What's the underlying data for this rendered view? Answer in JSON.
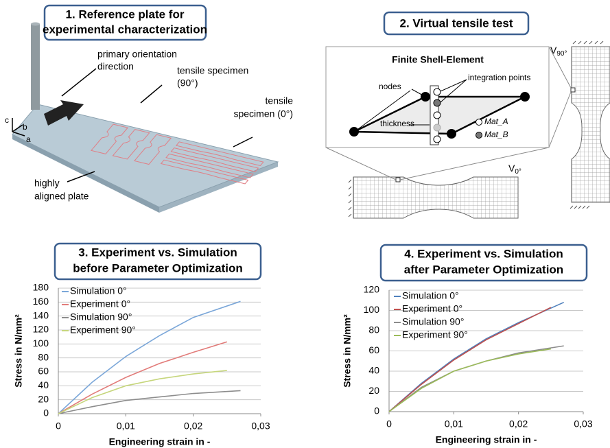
{
  "diagram_1": {
    "title_lines": [
      "1. Reference plate for",
      "experimental characterization"
    ],
    "orientation_lines": [
      "primary orientation",
      "direction"
    ],
    "specimen_90_lines": [
      "tensile specimen",
      "(90°)"
    ],
    "specimen_0_lines": [
      "tensile",
      "specimen (0°)"
    ],
    "plate_lines": [
      "highly",
      "aligned plate"
    ],
    "axes": [
      "c",
      "b",
      "a"
    ]
  },
  "diagram_2": {
    "title": "2. Virtual tensile test",
    "element_title": "Finite Shell-Element",
    "nodes": "nodes",
    "integration_points": "integration points",
    "thickness": "thickness",
    "materials": [
      "Mat_A",
      "Mat_B"
    ],
    "v90": {
      "symbol": "V",
      "subscript": "90°"
    },
    "v0": {
      "symbol": "V",
      "subscript": "0°"
    }
  },
  "chart_data": [
    {
      "type": "line",
      "title_lines": [
        "3. Experiment vs. Simulation",
        "before Parameter Optimization"
      ],
      "xlabel": "Engineering strain in -",
      "ylabel": "Stress in N/mm²",
      "xlim": [
        0,
        0.03
      ],
      "ylim": [
        0,
        180
      ],
      "xticks": [
        0,
        {
          "value": 0.01,
          "label": "0,01"
        },
        {
          "value": 0.02,
          "label": "0,02"
        },
        {
          "value": 0.03,
          "label": "0,03"
        }
      ],
      "yticks": [
        0,
        20,
        40,
        60,
        80,
        100,
        120,
        140,
        160,
        180
      ],
      "grid": true,
      "legend": "upper left",
      "series": [
        {
          "name": "Simulation 0°",
          "color": "#7ba7d9",
          "x": [
            0,
            0.005,
            0.01,
            0.015,
            0.02,
            0.027
          ],
          "values": [
            0,
            45,
            82,
            112,
            138,
            161
          ]
        },
        {
          "name": "Experiment 0°",
          "color": "#e27c7a",
          "x": [
            0,
            0.005,
            0.01,
            0.015,
            0.02,
            0.025
          ],
          "values": [
            0,
            28,
            52,
            72,
            88,
            103
          ]
        },
        {
          "name": "Simulation 90°",
          "color": "#8c8c8c",
          "x": [
            0,
            0.005,
            0.01,
            0.015,
            0.02,
            0.027
          ],
          "values": [
            0,
            10,
            19,
            24,
            29,
            33
          ]
        },
        {
          "name": "Experiment 90°",
          "color": "#c6d67c",
          "x": [
            0,
            0.005,
            0.01,
            0.015,
            0.02,
            0.025
          ],
          "values": [
            0,
            23,
            40,
            50,
            57,
            62
          ]
        }
      ]
    },
    {
      "type": "line",
      "title_lines": [
        "4. Experiment vs. Simulation",
        "after Parameter Optimization"
      ],
      "xlabel": "Engineering strain in -",
      "ylabel": "Stress in N/mm²",
      "xlim": [
        0,
        0.03
      ],
      "ylim": [
        0,
        120
      ],
      "xticks": [
        0,
        {
          "value": 0.01,
          "label": "0,01"
        },
        {
          "value": 0.02,
          "label": "0,02"
        },
        {
          "value": 0.03,
          "label": "0,03"
        }
      ],
      "yticks": [
        0,
        20,
        40,
        60,
        80,
        100,
        120
      ],
      "grid": true,
      "legend": "upper left",
      "series": [
        {
          "name": "Simulation 0°",
          "color": "#4f81bd",
          "x": [
            0,
            0.005,
            0.01,
            0.015,
            0.02,
            0.027
          ],
          "values": [
            0,
            28,
            52,
            72,
            88,
            108
          ]
        },
        {
          "name": "Experiment 0°",
          "color": "#c0504d",
          "x": [
            0,
            0.005,
            0.01,
            0.015,
            0.02,
            0.025
          ],
          "values": [
            0,
            27,
            51,
            71,
            87,
            103
          ]
        },
        {
          "name": "Simulation 90°",
          "color": "#8c8c8c",
          "x": [
            0,
            0.005,
            0.01,
            0.015,
            0.02,
            0.027
          ],
          "values": [
            0,
            24,
            40,
            50,
            58,
            65
          ]
        },
        {
          "name": "Experiment 90°",
          "color": "#9bbb59",
          "x": [
            0,
            0.005,
            0.01,
            0.015,
            0.02,
            0.025
          ],
          "values": [
            0,
            23,
            40,
            50,
            57,
            62
          ]
        }
      ]
    }
  ]
}
